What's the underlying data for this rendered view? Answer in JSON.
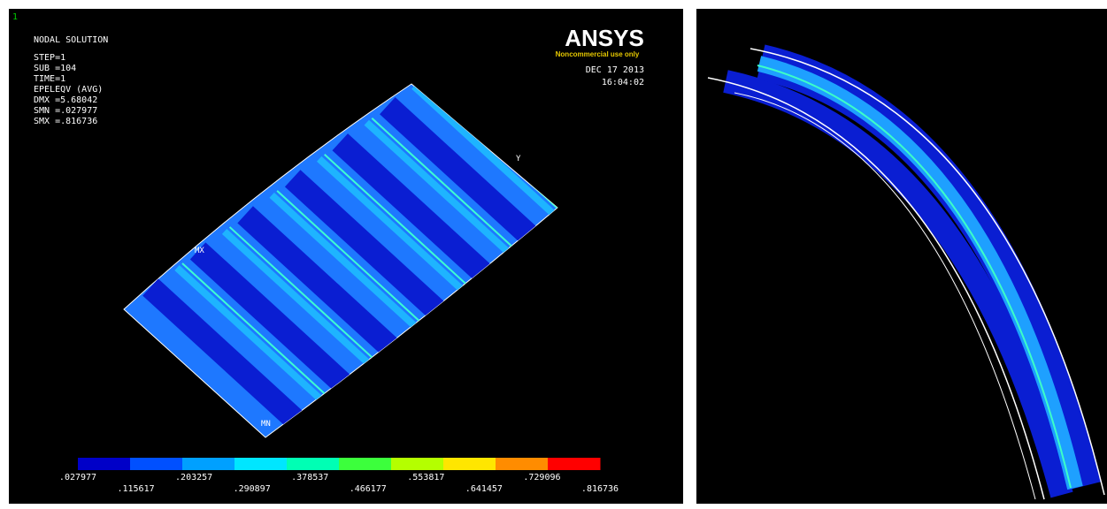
{
  "left_panel": {
    "window_number": "1",
    "result_title": "NODAL SOLUTION",
    "info_lines": [
      "STEP=1",
      "SUB =104",
      "TIME=1",
      "EPELEQV  (AVG)",
      "DMX =5.68042",
      "SMN =.027977",
      "SMX =.816736"
    ],
    "logo": {
      "name": "ANSYS",
      "note": "Noncommercial use only"
    },
    "date": "DEC 17 2013",
    "time": "16:04:02",
    "markers": {
      "max": "MX",
      "min": "MN",
      "axis": "Y"
    },
    "legend": {
      "colors": [
        "#0000c8",
        "#0050ff",
        "#00a0ff",
        "#00e6ff",
        "#00ffb4",
        "#3cff3c",
        "#b4ff00",
        "#ffe600",
        "#ff8c00",
        "#ff0000"
      ],
      "labels": [
        ".027977",
        ".115617",
        ".203257",
        ".290897",
        ".378537",
        ".466177",
        ".553817",
        ".641457",
        ".729096",
        ".816736"
      ]
    }
  }
}
